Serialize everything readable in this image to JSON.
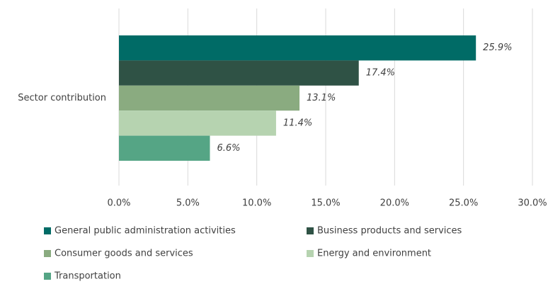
{
  "chart_data": {
    "type": "bar",
    "orientation": "horizontal",
    "categories": [
      "Sector contribution"
    ],
    "series": [
      {
        "name": "General public administration activities",
        "color": "#006b66",
        "values": [
          25.9
        ],
        "value_labels": [
          "25.9%"
        ]
      },
      {
        "name": "Business products and services",
        "color": "#2f5245",
        "values": [
          17.4
        ],
        "value_labels": [
          "17.4%"
        ]
      },
      {
        "name": "Consumer goods and services",
        "color": "#8aab80",
        "values": [
          13.1
        ],
        "value_labels": [
          "13.1%"
        ]
      },
      {
        "name": "Energy and environment",
        "color": "#b6d3b0",
        "values": [
          11.4
        ],
        "value_labels": [
          "11.4%"
        ]
      },
      {
        "name": "Transportation",
        "color": "#55a585",
        "values": [
          6.6
        ],
        "value_labels": [
          "6.6%"
        ]
      }
    ],
    "xlim": [
      0,
      30
    ],
    "xticks": [
      {
        "value": 0,
        "label": "0.0%"
      },
      {
        "value": 5,
        "label": "5.0%"
      },
      {
        "value": 10,
        "label": "10.0%"
      },
      {
        "value": 15,
        "label": "15.0%"
      },
      {
        "value": 20,
        "label": "20.0%"
      },
      {
        "value": 25,
        "label": "25.0%"
      },
      {
        "value": 30,
        "label": "30.0%"
      }
    ],
    "grid": true,
    "legend": "bottom"
  }
}
